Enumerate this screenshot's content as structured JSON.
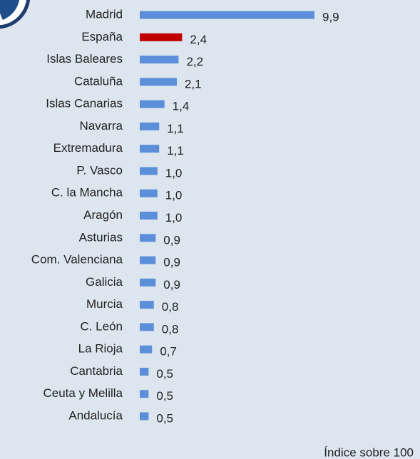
{
  "chart_data": {
    "type": "bar",
    "categories": [
      "Madrid",
      "España",
      "Islas Baleares",
      "Cataluña",
      "Islas Canarias",
      "Navarra",
      "Extremadura",
      "P. Vasco",
      "C. la Mancha",
      "Aragón",
      "Asturias",
      "Com. Valenciana",
      "Galicia",
      "Murcia",
      "C. León",
      "La Rioja",
      "Cantabria",
      "Ceuta y Melilla",
      "Andalucía"
    ],
    "values": [
      9.9,
      2.4,
      2.2,
      2.1,
      1.4,
      1.1,
      1.1,
      1.0,
      1.0,
      1.0,
      0.9,
      0.9,
      0.9,
      0.8,
      0.8,
      0.7,
      0.5,
      0.5,
      0.5
    ],
    "value_labels": [
      "9,9",
      "2,4",
      "2,2",
      "2,1",
      "1,4",
      "1,1",
      "1,1",
      "1,0",
      "1,0",
      "1,0",
      "0,9",
      "0,9",
      "0,9",
      "0,8",
      "0,8",
      "0,7",
      "0,5",
      "0,5",
      "0,5"
    ],
    "colors": [
      "#5b8fd9",
      "#c00000",
      "#5b8fd9",
      "#5b8fd9",
      "#5b8fd9",
      "#5b8fd9",
      "#5b8fd9",
      "#5b8fd9",
      "#5b8fd9",
      "#5b8fd9",
      "#5b8fd9",
      "#5b8fd9",
      "#5b8fd9",
      "#5b8fd9",
      "#5b8fd9",
      "#5b8fd9",
      "#5b8fd9",
      "#5b8fd9",
      "#5b8fd9"
    ],
    "note": "Índice sobre 100"
  }
}
